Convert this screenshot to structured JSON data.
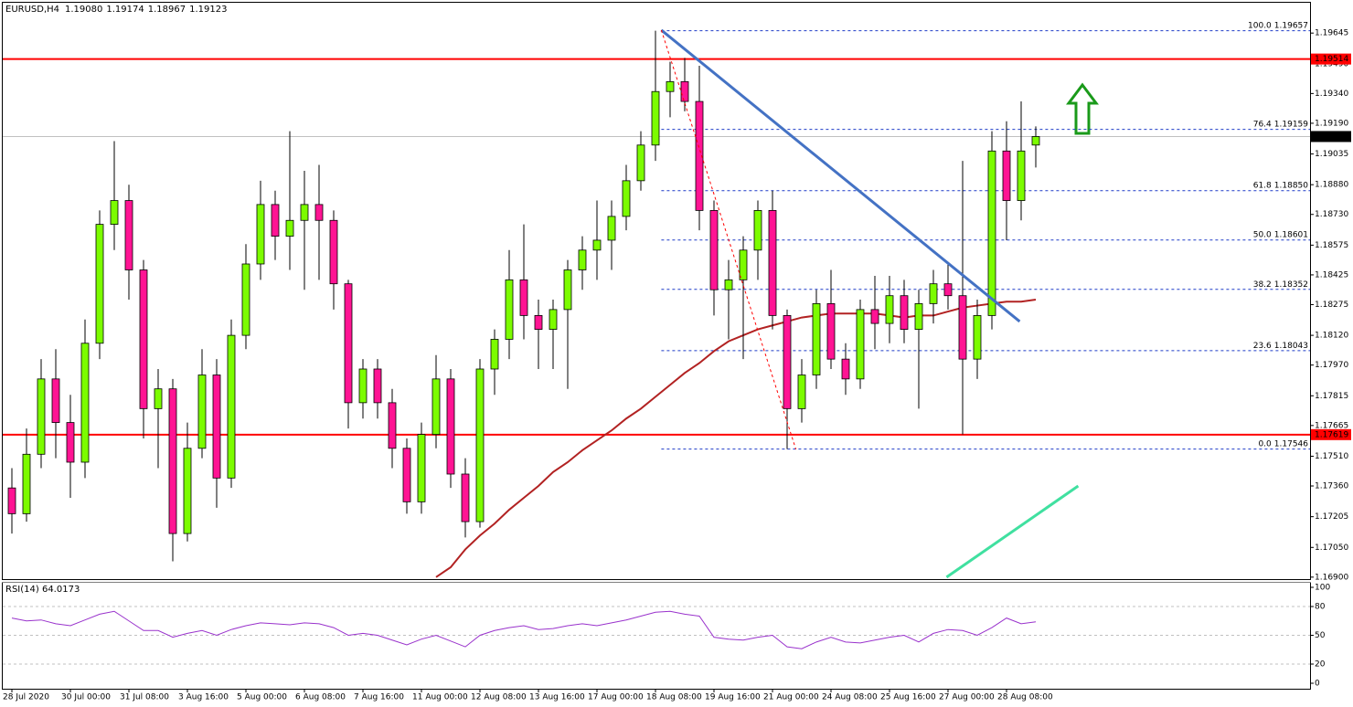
{
  "chart_data": {
    "type": "candlestick",
    "symbol": "EURUSD,H4",
    "ohlc_labels": [
      "1.19080",
      "1.19174",
      "1.18967",
      "1.19123"
    ],
    "categories": [
      "28 Jul 2020",
      null,
      null,
      null,
      "30 Jul 00:00",
      null,
      null,
      null,
      "31 Jul 08:00",
      null,
      null,
      null,
      "3 Aug 16:00",
      null,
      null,
      null,
      "5 Aug 00:00",
      null,
      null,
      null,
      "6 Aug 08:00",
      null,
      null,
      null,
      "7 Aug 16:00",
      null,
      null,
      null,
      "11 Aug 00:00",
      null,
      null,
      null,
      "12 Aug 08:00",
      null,
      null,
      null,
      "13 Aug 16:00",
      null,
      null,
      null,
      "17 Aug 00:00",
      null,
      null,
      null,
      "18 Aug 08:00",
      null,
      null,
      null,
      "19 Aug 16:00",
      null,
      null,
      null,
      "21 Aug 00:00",
      null,
      null,
      null,
      "24 Aug 08:00",
      null,
      null,
      null,
      "25 Aug 16:00",
      null,
      null,
      null,
      "27 Aug 00:00",
      null,
      null,
      null,
      "28 Aug 08:00",
      null,
      null
    ],
    "open": [
      1.1735,
      1.1722,
      1.1752,
      1.179,
      1.1768,
      1.1748,
      1.1808,
      1.1868,
      1.188,
      1.1845,
      1.1775,
      1.1785,
      1.1712,
      1.1755,
      1.1792,
      1.174,
      1.1812,
      1.1848,
      1.1878,
      1.1862,
      1.187,
      1.1878,
      1.187,
      1.1838,
      1.1778,
      1.1795,
      1.1778,
      1.1755,
      1.1728,
      1.1762,
      1.179,
      1.1742,
      1.1718,
      1.1795,
      1.181,
      1.184,
      1.1822,
      1.1815,
      1.1825,
      1.1845,
      1.1855,
      1.186,
      1.1872,
      1.189,
      1.1908,
      1.1935,
      1.194,
      1.193,
      1.1875,
      1.1835,
      1.184,
      1.1855,
      1.1875,
      1.1822,
      1.1775,
      1.1792,
      1.1828,
      1.18,
      1.179,
      1.1825,
      1.1818,
      1.1832,
      1.1815,
      1.1828,
      1.1838,
      1.1832,
      1.18,
      1.1822,
      1.1905,
      1.188,
      1.1908
    ],
    "high": [
      1.1745,
      1.1765,
      1.18,
      1.1805,
      1.1782,
      1.182,
      1.1875,
      1.191,
      1.1888,
      1.185,
      1.1795,
      1.179,
      1.1768,
      1.1805,
      1.18,
      1.182,
      1.1858,
      1.189,
      1.1885,
      1.1915,
      1.1895,
      1.1898,
      1.1875,
      1.184,
      1.18,
      1.18,
      1.1785,
      1.176,
      1.1768,
      1.1802,
      1.1795,
      1.175,
      1.18,
      1.1815,
      1.1855,
      1.1868,
      1.183,
      1.183,
      1.185,
      1.1862,
      1.188,
      1.188,
      1.1898,
      1.1915,
      1.19657,
      1.195,
      1.1952,
      1.1948,
      1.188,
      1.185,
      1.1862,
      1.188,
      1.1885,
      1.1825,
      1.18,
      1.1835,
      1.1845,
      1.1808,
      1.183,
      1.1842,
      1.1842,
      1.184,
      1.1835,
      1.1845,
      1.1848,
      1.19,
      1.183,
      1.1915,
      1.192,
      1.193,
      1.19174
    ],
    "low": [
      1.1712,
      1.1718,
      1.1745,
      1.175,
      1.173,
      1.174,
      1.18,
      1.1855,
      1.183,
      1.176,
      1.1745,
      1.1698,
      1.1708,
      1.175,
      1.1725,
      1.1735,
      1.1805,
      1.184,
      1.185,
      1.1845,
      1.1835,
      1.184,
      1.1825,
      1.1765,
      1.177,
      1.177,
      1.1745,
      1.1722,
      1.1722,
      1.1755,
      1.1735,
      1.171,
      1.1715,
      1.1782,
      1.18,
      1.181,
      1.1795,
      1.1795,
      1.1785,
      1.1835,
      1.184,
      1.1845,
      1.1865,
      1.1885,
      1.19,
      1.1922,
      1.1925,
      1.1865,
      1.1822,
      1.181,
      1.18,
      1.184,
      1.1815,
      1.17546,
      1.1768,
      1.1785,
      1.1795,
      1.1782,
      1.1785,
      1.1805,
      1.1808,
      1.1808,
      1.1775,
      1.1818,
      1.1825,
      1.1762,
      1.179,
      1.1815,
      1.186,
      1.187,
      1.18967
    ],
    "close": [
      1.1722,
      1.1752,
      1.179,
      1.1768,
      1.1748,
      1.1808,
      1.1868,
      1.188,
      1.1845,
      1.1775,
      1.1785,
      1.1712,
      1.1755,
      1.1792,
      1.174,
      1.1812,
      1.1848,
      1.1878,
      1.1862,
      1.187,
      1.1878,
      1.187,
      1.1838,
      1.1778,
      1.1795,
      1.1778,
      1.1755,
      1.1728,
      1.1762,
      1.179,
      1.1742,
      1.1718,
      1.1795,
      1.181,
      1.184,
      1.1822,
      1.1815,
      1.1825,
      1.1845,
      1.1855,
      1.186,
      1.1872,
      1.189,
      1.1908,
      1.1935,
      1.194,
      1.193,
      1.1875,
      1.1835,
      1.184,
      1.1855,
      1.1875,
      1.1822,
      1.1775,
      1.1792,
      1.1828,
      1.18,
      1.179,
      1.1825,
      1.1818,
      1.1832,
      1.1815,
      1.1828,
      1.1838,
      1.1832,
      1.18,
      1.1822,
      1.1905,
      1.188,
      1.1905,
      1.19123
    ],
    "bull_color": "#7cfc00",
    "bear_color": "#ff1493",
    "ylim": [
      1.1689,
      1.19798
    ],
    "yticks": [
      1.19645,
      {
        "value": 1.1949,
        "label": "1.19490"
      },
      {
        "value": 1.1934,
        "label": "1.19340"
      },
      {
        "value": 1.1919,
        "label": "1.19190"
      },
      1.19035,
      {
        "value": 1.1888,
        "label": "1.18880"
      },
      {
        "value": 1.1873,
        "label": "1.18730"
      },
      1.18575,
      1.18425,
      1.18275,
      {
        "value": 1.1812,
        "label": "1.18120"
      },
      {
        "value": 1.1797,
        "label": "1.17970"
      },
      1.17815,
      1.17665,
      {
        "value": 1.1751,
        "label": "1.17510"
      },
      {
        "value": 1.1736,
        "label": "1.17360"
      },
      1.17205,
      {
        "value": 1.1705,
        "label": "1.17050"
      },
      {
        "value": 1.169,
        "label": "1.16900"
      }
    ],
    "ma": {
      "color": "#b22222",
      "values": [
        null,
        null,
        null,
        null,
        null,
        null,
        null,
        null,
        null,
        null,
        null,
        null,
        null,
        null,
        null,
        null,
        null,
        null,
        null,
        null,
        null,
        null,
        null,
        null,
        null,
        null,
        null,
        null,
        null,
        1.169,
        1.1695,
        1.1704,
        1.1711,
        1.1717,
        1.1724,
        1.173,
        1.1736,
        1.1743,
        1.1748,
        1.1754,
        1.1759,
        1.1764,
        1.177,
        1.1775,
        1.1781,
        1.1787,
        1.1793,
        1.1798,
        1.1804,
        1.1809,
        1.1812,
        1.1815,
        1.1817,
        1.1819,
        1.1821,
        1.1822,
        1.1823,
        1.1823,
        1.1823,
        1.1823,
        1.1822,
        1.1821,
        1.1822,
        1.1822,
        1.1824,
        1.1826,
        1.1827,
        1.1828,
        1.1829,
        1.1829,
        1.183
      ]
    },
    "trendlines": [
      {
        "color": "#4472c4",
        "dashed": false,
        "x": [
          44.4,
          68.9
        ],
        "y": [
          1.1966,
          1.1819
        ]
      },
      {
        "color": "#ff0000",
        "dashed": true,
        "x": [
          44.4,
          53.6
        ],
        "y": [
          1.1966,
          1.17545
        ]
      },
      {
        "color": "#40e0a0",
        "dashed": false,
        "x": [
          63.9,
          72.9
        ],
        "y": [
          1.169,
          1.1736
        ]
      }
    ],
    "hlines": [
      {
        "value": 1.19514,
        "color": "#ff0000",
        "box_color": "#ff0000"
      },
      {
        "value": 1.17619,
        "color": "#ff0000",
        "box_color": "#ff0000"
      },
      {
        "value": 1.19123,
        "color": "#c0c0c0",
        "box_color": "#000000"
      }
    ],
    "fib": {
      "color": "#1e3cc8",
      "x_start": 44.4,
      "levels": [
        {
          "level": "100.0",
          "value": 1.19657
        },
        {
          "level": "76.4",
          "value": 1.19159
        },
        {
          "level": "61.8",
          "value": {
            "value": 1.1885,
            "label": "1.18850"
          }
        },
        {
          "level": "50.0",
          "value": 1.18601
        },
        {
          "level": "38.2",
          "value": 1.18352
        },
        {
          "level": "23.6",
          "value": 1.18043
        },
        {
          "level": "0.0",
          "value": 1.17546
        }
      ]
    },
    "rsi": {
      "title": "RSI(14) 64.0173",
      "color": "#9932cc",
      "ylim": [
        0,
        100
      ],
      "yticks": [
        100,
        80,
        50,
        20,
        0
      ],
      "levels": [
        80,
        50,
        20
      ],
      "values": [
        68,
        65,
        66,
        62,
        60,
        66,
        72,
        75,
        65,
        55,
        55,
        48,
        52,
        55,
        50,
        56,
        60,
        63,
        62,
        61,
        63,
        62,
        58,
        50,
        52,
        50,
        45,
        40,
        46,
        50,
        44,
        38,
        50,
        55,
        58,
        60,
        56,
        57,
        60,
        62,
        60,
        63,
        66,
        70,
        74,
        75,
        72,
        70,
        48,
        46,
        45,
        48,
        50,
        38,
        36,
        43,
        48,
        43,
        42,
        45,
        48,
        50,
        43,
        52,
        56,
        55,
        50,
        58,
        68,
        62,
        64
      ]
    }
  }
}
